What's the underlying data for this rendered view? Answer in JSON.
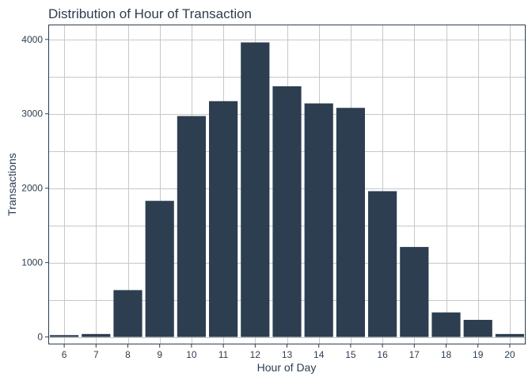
{
  "chart_data": {
    "type": "bar",
    "title": "Distribution of Hour of Transaction",
    "xlabel": "Hour of Day",
    "ylabel": "Transactions",
    "categories": [
      "6",
      "7",
      "8",
      "9",
      "10",
      "11",
      "12",
      "13",
      "14",
      "15",
      "16",
      "17",
      "18",
      "19",
      "20"
    ],
    "values": [
      25,
      40,
      630,
      1830,
      2970,
      3170,
      3960,
      3370,
      3140,
      3080,
      1960,
      1210,
      330,
      230,
      40
    ],
    "ylim": [
      -100,
      4200
    ],
    "yticks": [
      0,
      1000,
      2000,
      3000,
      4000
    ],
    "grid": true,
    "legend": "none",
    "bar_color": "#2c3e50",
    "text_color": "#2c3e50",
    "grid_color": "#c8c8c8"
  }
}
